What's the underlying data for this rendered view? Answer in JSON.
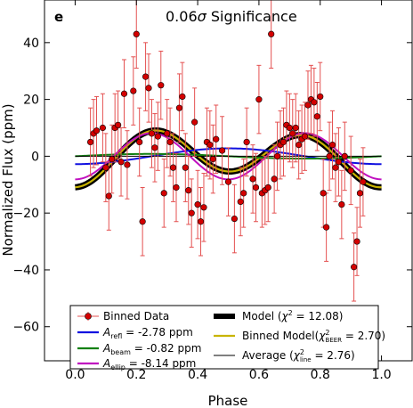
{
  "panel_label": "e",
  "title_value": "0.06",
  "title_sigma": "σ",
  "title_suffix": " Significance",
  "colors": {
    "data": "#d40000",
    "errorbar": "#e45050",
    "refl": "#1010e0",
    "beam": "#108010",
    "ellip": "#c010c0",
    "model": "#000000",
    "binned_model": "#c8b400",
    "average": "#000000"
  },
  "legend": {
    "binned_data": "Binned Data",
    "refl": {
      "symbol": "A",
      "sub": "refl",
      "text": " =  -2.78 ppm"
    },
    "beam": {
      "symbol": "A",
      "sub": "beam",
      "text": " =  -0.82 ppm"
    },
    "ellip": {
      "symbol": "A",
      "sub": "ellip",
      "text": " =  -8.14 ppm"
    },
    "model": {
      "pre": "Model (",
      "chi": "χ",
      "sup": "2",
      "post": " = 12.08)"
    },
    "binned_model": {
      "pre": "Binned Model(",
      "chi": "χ",
      "sup": "2",
      "sub": "BEER",
      "post": " =  2.70)"
    },
    "average": {
      "pre": "Average (",
      "chi": "χ",
      "sup": "2",
      "sub": "line",
      "post": " =  2.76)"
    }
  },
  "chart_data": {
    "type": "scatter",
    "title": "0.06σ Significance",
    "xlabel": "Phase",
    "ylabel": "Normalized Flux (ppm)",
    "xlim": [
      -0.1,
      1.1
    ],
    "ylim": [
      -72,
      55
    ],
    "xticks": [
      "0.0",
      "0.2",
      "0.4",
      "0.6",
      "0.8",
      "1.0"
    ],
    "yticks": [
      "−60",
      "−40",
      "−20",
      "0",
      "20",
      "40"
    ],
    "legend_position": "lower-center",
    "binned_data": {
      "name": "Binned Data",
      "x": [
        0.05,
        0.06,
        0.07,
        0.09,
        0.1,
        0.11,
        0.12,
        0.13,
        0.14,
        0.15,
        0.16,
        0.17,
        0.19,
        0.2,
        0.21,
        0.22,
        0.23,
        0.24,
        0.25,
        0.26,
        0.27,
        0.28,
        0.29,
        0.3,
        0.31,
        0.32,
        0.33,
        0.34,
        0.35,
        0.36,
        0.37,
        0.38,
        0.39,
        0.4,
        0.41,
        0.42,
        0.43,
        0.44,
        0.45,
        0.46,
        0.48,
        0.5,
        0.52,
        0.54,
        0.55,
        0.56,
        0.58,
        0.59,
        0.6,
        0.61,
        0.62,
        0.63,
        0.64,
        0.65,
        0.66,
        0.67,
        0.68,
        0.69,
        0.7,
        0.71,
        0.72,
        0.73,
        0.74,
        0.75,
        0.76,
        0.77,
        0.78,
        0.79,
        0.8,
        0.81,
        0.82,
        0.83,
        0.84,
        0.85,
        0.86,
        0.87,
        0.88,
        0.9,
        0.91,
        0.92,
        0.93,
        0.94
      ],
      "y": [
        5,
        8,
        9,
        10,
        -4,
        -14,
        -1,
        10,
        11,
        -2,
        22,
        -3,
        23,
        43,
        5,
        -23,
        28,
        24,
        8,
        3,
        7,
        25,
        -13,
        8,
        5,
        -4,
        -11,
        17,
        21,
        -4,
        -12,
        -20,
        12,
        -17,
        -23,
        -18,
        5,
        4,
        -1,
        6,
        2,
        -9,
        -22,
        -16,
        -13,
        5,
        -8,
        -11,
        20,
        -13,
        -12,
        -11,
        43,
        -8,
        0,
        4,
        5,
        11,
        10,
        8,
        10,
        4,
        6,
        7,
        18,
        20,
        19,
        14,
        21,
        -13,
        -25,
        0,
        4,
        -4,
        -2,
        -17,
        0,
        -5,
        -39,
        -30,
        -13,
        -9
      ],
      "yerr": [
        12,
        12,
        12,
        12,
        12,
        12,
        12,
        12,
        12,
        12,
        12,
        12,
        12,
        12,
        12,
        12,
        12,
        12,
        12,
        12,
        12,
        12,
        12,
        12,
        12,
        12,
        12,
        12,
        12,
        12,
        12,
        12,
        12,
        12,
        12,
        12,
        12,
        12,
        12,
        12,
        12,
        12,
        12,
        12,
        12,
        12,
        12,
        12,
        12,
        12,
        12,
        12,
        12,
        12,
        12,
        12,
        12,
        12,
        12,
        12,
        12,
        12,
        12,
        12,
        12,
        12,
        12,
        12,
        12,
        12,
        12,
        12,
        12,
        12,
        12,
        12,
        12,
        12,
        12,
        12,
        12,
        12
      ]
    },
    "curves": [
      {
        "name": "A_refl = -2.78 ppm",
        "kind": "refl",
        "amplitude": 2.78
      },
      {
        "name": "A_beam = -0.82 ppm",
        "kind": "beam",
        "amplitude": 0.82
      },
      {
        "name": "A_ellip = -8.14 ppm",
        "kind": "ellip",
        "amplitude": 8.14
      },
      {
        "name": "Model (χ² = 12.08)",
        "kind": "model"
      },
      {
        "name": "Binned Model(χ²_BEER = 2.70)",
        "kind": "binned_model"
      },
      {
        "name": "Average (χ²_line = 2.76)",
        "kind": "average",
        "value": 0
      }
    ]
  }
}
